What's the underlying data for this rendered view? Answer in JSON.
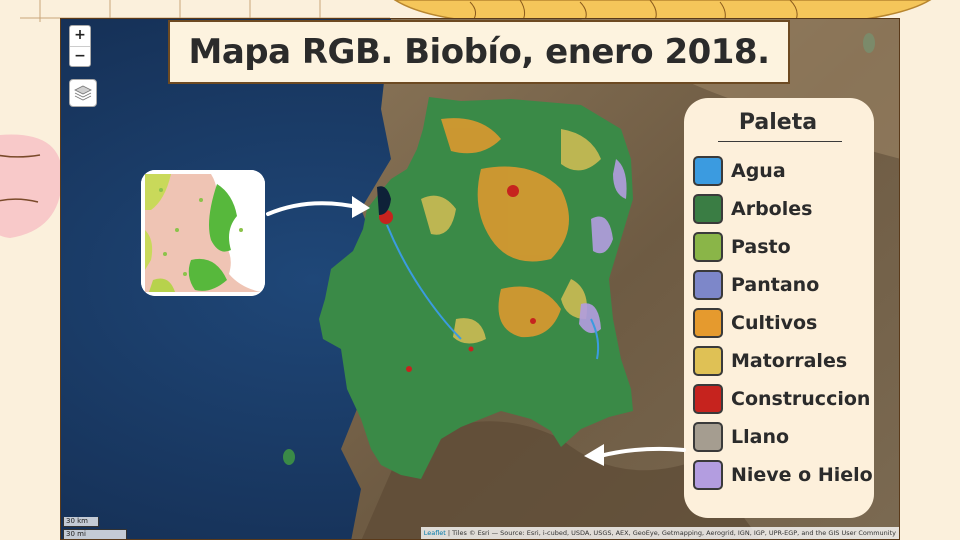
{
  "title": "Mapa RGB. Biobío, enero 2018.",
  "map": {
    "zoom_in_label": "+",
    "zoom_out_label": "−",
    "scale_km_label": "30 km",
    "scale_mi_label": "30 mi",
    "attribution_leaflet": "Leaflet",
    "attribution_text": " | Tiles © Esri — Source: Esri, i-cubed, USDA, USGS, AEX, GeoEye, Getmapping, Aerogrid, IGN, IGP, UPR-EGP, and the GIS User Community"
  },
  "legend": {
    "title": "Paleta",
    "items": [
      {
        "label": "Agua",
        "color": "#3b9be0"
      },
      {
        "label": "Arboles",
        "color": "#3a7d44"
      },
      {
        "label": "Pasto",
        "color": "#8ab548"
      },
      {
        "label": "Pantano",
        "color": "#7d87c9"
      },
      {
        "label": "Cultivos",
        "color": "#e59a2e"
      },
      {
        "label": "Matorrales",
        "color": "#dfc155"
      },
      {
        "label": "Construccion",
        "color": "#c6231e"
      },
      {
        "label": "Llano",
        "color": "#a59d90"
      },
      {
        "label": "Nieve o Hielo",
        "color": "#b39de0"
      }
    ]
  },
  "icons": {
    "layers": "layers-icon",
    "arrow_to_inset": "curved-arrow-icon",
    "arrow_to_region": "curved-arrow-icon"
  }
}
